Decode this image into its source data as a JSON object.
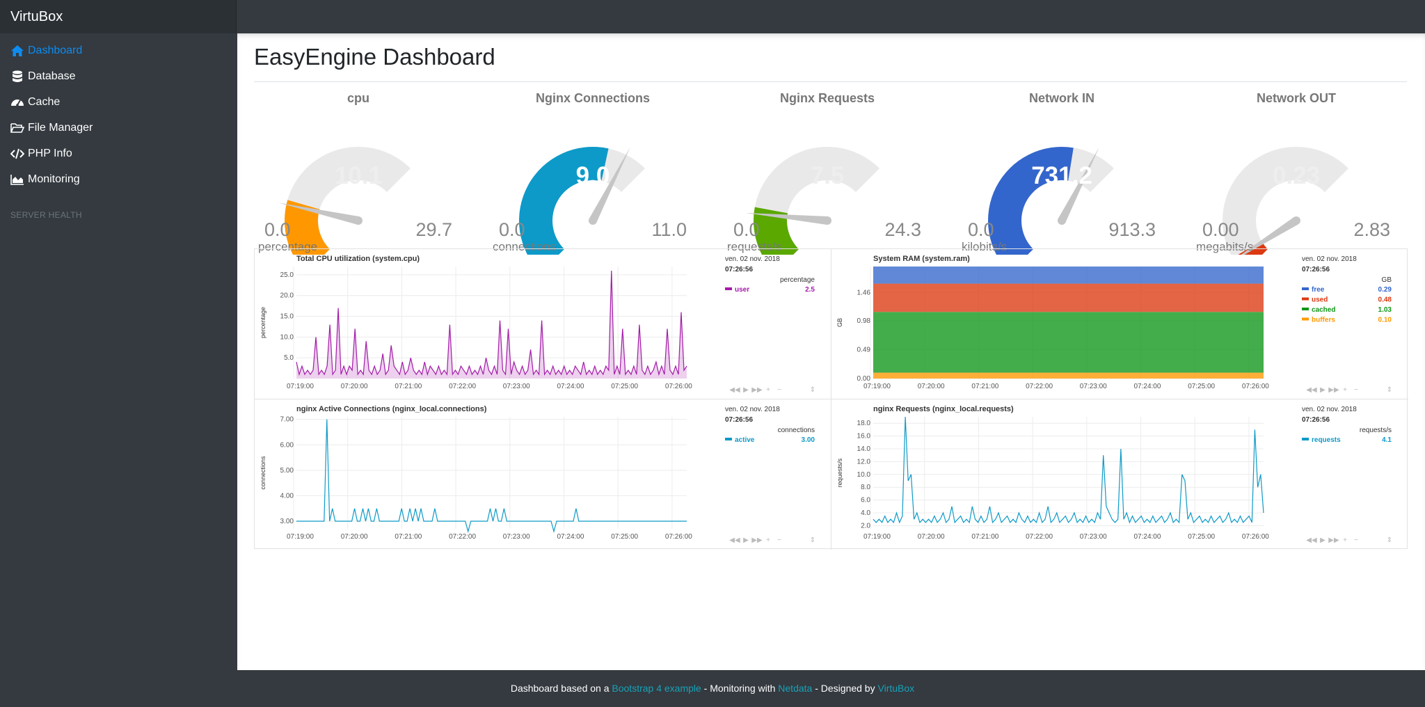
{
  "app": {
    "brand": "VirtuBox"
  },
  "sidebar": {
    "items": [
      {
        "label": "Dashboard",
        "icon": "home-icon",
        "active": true
      },
      {
        "label": "Database",
        "icon": "database-icon"
      },
      {
        "label": "Cache",
        "icon": "tachometer-icon"
      },
      {
        "label": "File Manager",
        "icon": "folder-open-icon"
      },
      {
        "label": "PHP Info",
        "icon": "code-icon"
      },
      {
        "label": "Monitoring",
        "icon": "area-chart-icon"
      }
    ],
    "section_heading": "SERVER HEALTH"
  },
  "main": {
    "title": "EasyEngine Dashboard"
  },
  "gauges": [
    {
      "title": "cpu",
      "value": "10.1",
      "value_num": 10.1,
      "min": "0.0",
      "max": "29.7",
      "max_num": 29.7,
      "unit": "percentage",
      "color": "#ff9800",
      "value_color": "#eeeeee",
      "needle": 0.32
    },
    {
      "title": "Nginx Connections",
      "value": "9.0",
      "value_num": 9.0,
      "min": "0.0",
      "max": "11.0",
      "max_num": 11.0,
      "unit": "connections",
      "color": "#0d9ac8",
      "value_color": "#ffffff",
      "needle": 0.9
    },
    {
      "title": "Nginx Requests",
      "value": "7.5",
      "value_num": 7.5,
      "min": "0.0",
      "max": "24.3",
      "max_num": 24.3,
      "unit": "requests/s",
      "color": "#5aa800",
      "value_color": "#eeeeee",
      "needle": 0.28
    },
    {
      "title": "Network IN",
      "value": "731.2",
      "value_num": 731.2,
      "min": "0.0",
      "max": "913.3",
      "max_num": 913.3,
      "unit": "kilobits/s",
      "color": "#3366cc",
      "value_color": "#ffffff",
      "needle": 0.9
    },
    {
      "title": "Network OUT",
      "value": "0.23",
      "value_num": 0.23,
      "min": "0.00",
      "max": "2.83",
      "max_num": 2.83,
      "unit": "megabits/s",
      "color": "#dc3912",
      "value_color": "#eeeeee",
      "needle": 0.07
    }
  ],
  "chart_data": [
    {
      "type": "area",
      "title": "Total CPU utilization (system.cpu)",
      "ylabel": "percentage",
      "ylim": [
        0,
        27
      ],
      "yticks": [
        "5.0",
        "10.0",
        "15.0",
        "20.0",
        "25.0"
      ],
      "ytick_values": [
        5,
        10,
        15,
        20,
        25
      ],
      "x_ticks": [
        "07:19:00",
        "07:20:00",
        "07:21:00",
        "07:22:00",
        "07:23:00",
        "07:24:00",
        "07:25:00",
        "07:26:00"
      ],
      "legend_date": "ven. 02 nov. 2018",
      "legend_time": "07:26:56",
      "legend_unit": "percentage",
      "series": [
        {
          "name": "user",
          "value": "2.5",
          "color": "#a31ba8",
          "values": [
            4,
            1,
            3,
            1,
            2,
            1,
            2,
            10,
            1,
            2,
            1,
            3,
            13,
            1,
            2,
            17,
            1,
            3,
            1,
            3,
            2,
            12,
            1,
            2,
            1,
            9,
            2,
            1,
            3,
            1,
            2,
            6,
            1,
            2,
            8,
            3,
            2,
            1,
            4,
            1,
            2,
            5,
            2,
            1,
            2,
            1,
            4,
            1,
            3,
            2,
            1,
            3,
            1,
            2,
            1,
            13,
            1,
            2,
            1,
            3,
            2,
            1,
            3,
            1,
            2,
            1,
            3,
            1,
            5,
            2,
            1,
            3,
            1,
            14,
            2,
            1,
            12,
            1,
            4,
            2,
            1,
            3,
            1,
            2,
            7,
            1,
            2,
            1,
            14,
            1,
            2,
            1,
            3,
            1,
            2,
            1,
            3,
            1,
            2,
            1,
            3,
            2,
            1,
            4,
            1,
            2,
            1,
            3,
            1,
            2,
            1,
            3,
            2,
            26,
            1,
            3,
            1,
            12,
            1,
            2,
            1,
            3,
            1,
            13,
            2,
            1,
            3,
            1,
            2,
            4,
            1,
            3,
            1,
            12,
            2,
            1,
            3,
            1,
            16,
            2,
            3
          ]
        }
      ]
    },
    {
      "type": "area",
      "title": "System RAM (system.ram)",
      "ylabel": "GB",
      "ylim": [
        0,
        1.9
      ],
      "yticks": [
        "0.00",
        "0.49",
        "0.98",
        "1.46"
      ],
      "ytick_values": [
        0,
        0.49,
        0.98,
        1.46
      ],
      "x_ticks": [
        "07:19:00",
        "07:20:00",
        "07:21:00",
        "07:22:00",
        "07:23:00",
        "07:24:00",
        "07:25:00",
        "07:26:00"
      ],
      "legend_date": "ven. 02 nov. 2018",
      "legend_time": "07:26:56",
      "legend_unit": "GB",
      "stacked": true,
      "series": [
        {
          "name": "free",
          "value": "0.29",
          "color": "#3366cc"
        },
        {
          "name": "used",
          "value": "0.48",
          "color": "#dc3912"
        },
        {
          "name": "cached",
          "value": "1.03",
          "color": "#109618"
        },
        {
          "name": "buffers",
          "value": "0.10",
          "color": "#ff9900"
        }
      ]
    },
    {
      "type": "line",
      "title": "nginx Active Connections (nginx_local.connections)",
      "ylabel": "connections",
      "ylim": [
        2.7,
        7.1
      ],
      "yticks": [
        "3.00",
        "4.00",
        "5.00",
        "6.00",
        "7.00"
      ],
      "ytick_values": [
        3,
        4,
        5,
        6,
        7
      ],
      "x_ticks": [
        "07:19:00",
        "07:20:00",
        "07:21:00",
        "07:22:00",
        "07:23:00",
        "07:24:00",
        "07:25:00",
        "07:26:00"
      ],
      "legend_date": "ven. 02 nov. 2018",
      "legend_time": "07:26:56",
      "legend_unit": "connections",
      "series": [
        {
          "name": "active",
          "value": "3.00",
          "color": "#0d9ac8",
          "values": [
            3,
            3,
            3,
            3,
            3,
            3,
            3,
            3,
            3,
            3,
            3,
            7,
            3,
            3.5,
            3,
            3,
            3,
            3,
            3,
            3,
            3,
            3.5,
            3,
            3,
            3.5,
            3,
            3.5,
            3,
            3,
            3.5,
            3,
            3,
            3,
            3,
            3,
            3,
            3,
            3,
            3.5,
            3,
            3,
            3.5,
            3,
            3.5,
            3,
            3.5,
            3,
            3,
            3,
            3,
            3.5,
            3,
            3,
            3,
            3,
            3,
            3,
            3,
            3,
            3,
            3,
            3,
            2.6,
            3,
            3,
            3,
            3,
            3,
            3,
            3,
            3.5,
            3,
            3.5,
            3,
            3,
            3.5,
            3,
            3,
            3,
            3,
            3,
            3,
            3,
            3,
            3,
            3,
            3,
            3,
            3,
            3,
            3,
            3,
            3,
            2.6,
            3,
            3,
            3,
            3,
            3,
            3,
            3,
            3.5,
            3,
            3,
            3,
            3,
            3,
            3,
            3,
            3,
            3,
            3,
            3,
            3,
            3,
            3,
            3,
            3,
            3,
            3,
            3,
            3,
            3,
            3,
            3,
            3,
            3,
            3,
            3,
            3,
            3,
            3,
            3,
            3,
            3,
            3,
            3,
            3,
            3,
            3,
            3,
            3
          ]
        }
      ]
    },
    {
      "type": "line",
      "title": "nginx Requests (nginx_local.requests)",
      "ylabel": "requests/s",
      "ylim": [
        1.5,
        19
      ],
      "yticks": [
        "2.0",
        "4.0",
        "6.0",
        "8.0",
        "10.0",
        "12.0",
        "14.0",
        "16.0",
        "18.0"
      ],
      "ytick_values": [
        2,
        4,
        6,
        8,
        10,
        12,
        14,
        16,
        18
      ],
      "x_ticks": [
        "07:19:00",
        "07:20:00",
        "07:21:00",
        "07:22:00",
        "07:23:00",
        "07:24:00",
        "07:25:00",
        "07:26:00"
      ],
      "legend_date": "ven. 02 nov. 2018",
      "legend_time": "07:26:56",
      "legend_unit": "requests/s",
      "series": [
        {
          "name": "requests",
          "value": "4.1",
          "color": "#0d9ac8",
          "values": [
            3,
            2.5,
            3,
            2.5,
            3.5,
            2.5,
            3,
            2.5,
            4,
            2.5,
            3.5,
            19,
            9,
            10,
            3,
            4,
            2.5,
            3,
            2.5,
            3,
            2.5,
            3.5,
            2.5,
            3,
            4,
            2.5,
            3,
            5,
            2.5,
            3,
            3.5,
            2.5,
            3,
            2.5,
            5,
            3,
            2.5,
            3.5,
            2.5,
            3,
            5,
            2.5,
            3,
            4,
            2.5,
            3,
            3.5,
            2.5,
            3,
            2.5,
            4,
            3,
            2.5,
            3.5,
            2.5,
            3,
            2.5,
            4,
            2.5,
            3,
            5,
            2.5,
            3,
            4,
            2.5,
            3,
            3.5,
            2.5,
            3,
            4,
            2.5,
            3,
            2.5,
            3.5,
            2.5,
            3,
            2.5,
            4,
            3,
            13,
            5,
            4,
            3,
            2.5,
            3,
            14,
            3,
            4,
            2.5,
            3.5,
            2.5,
            3,
            3.5,
            2.5,
            3,
            2.5,
            3.5,
            2.5,
            3,
            3.5,
            2.5,
            3,
            4,
            2.5,
            3,
            2.5,
            10,
            9,
            3,
            4,
            2.5,
            3,
            3.5,
            2.5,
            3,
            2.5,
            3.5,
            2.5,
            3,
            3.5,
            2.5,
            3,
            4,
            2.5,
            3,
            2.5,
            3.5,
            2.5,
            3,
            3.5,
            2.5,
            17,
            8,
            10,
            4
          ]
        }
      ]
    }
  ],
  "footer": {
    "prefix": "Dashboard based on a ",
    "link1": "Bootstrap 4 example",
    "mid": " - Monitoring with ",
    "link2": "Netdata",
    "mid2": " - Designed by ",
    "link3": "VirtuBox"
  }
}
